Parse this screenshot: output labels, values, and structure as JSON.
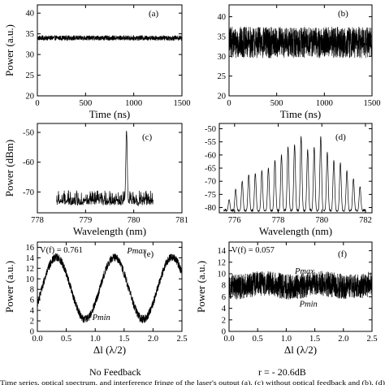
{
  "chart_data": [
    {
      "type": "line",
      "panel_label": "(a)",
      "xlabel": "Time (ns)",
      "ylabel": "Power (a.u.)",
      "xlim": [
        0,
        1500
      ],
      "ylim": [
        20,
        42
      ],
      "xticks": [
        "0",
        "500",
        "1000",
        "1500"
      ],
      "yticks": [
        "20",
        "25",
        "30",
        "35",
        "40"
      ],
      "series": [
        {
          "trace": "noise",
          "mean": 34,
          "amplitude": 0.6
        }
      ]
    },
    {
      "type": "line",
      "panel_label": "(b)",
      "xlabel": "Time (ns)",
      "ylabel": "",
      "xlim": [
        0,
        1500
      ],
      "ylim": [
        20,
        43
      ],
      "xticks": [
        "0",
        "500",
        "1000",
        "1500"
      ],
      "yticks": [
        "20",
        "25",
        "30",
        "35",
        "40"
      ],
      "series": [
        {
          "trace": "noise",
          "mean": 33.5,
          "amplitude": 4
        }
      ]
    },
    {
      "type": "line",
      "panel_label": "(c)",
      "xlabel": "Wavelength (nm)",
      "ylabel": "Power (dBm)",
      "xlim": [
        778,
        781
      ],
      "ylim": [
        -77,
        -47
      ],
      "xticks": [
        "778",
        "779",
        "780",
        "781"
      ],
      "yticks": [
        "-70",
        "-60",
        "-50"
      ],
      "series": [
        {
          "trace": "spectrum",
          "x_start": 778.4,
          "x_end": 780.4,
          "floor": -74.5,
          "floor_spread": 5,
          "peaks": [
            {
              "x": 779.85,
              "y": -49.5
            }
          ]
        }
      ]
    },
    {
      "type": "line",
      "panel_label": "(d)",
      "xlabel": "Wavelength (nm)",
      "ylabel": "",
      "xlim": [
        775.3,
        782.3
      ],
      "ylim": [
        -82,
        -48
      ],
      "xticks": [
        "776",
        "778",
        "780",
        "782"
      ],
      "yticks": [
        "-80",
        "-75",
        "-70",
        "-65",
        "-60",
        "-55",
        "-50"
      ],
      "series": [
        {
          "trace": "spectrum",
          "x_start": 775.5,
          "x_end": 782.0,
          "floor": -81.5,
          "floor_spread": 1,
          "peaks": [
            {
              "x": 775.75,
              "y": -77
            },
            {
              "x": 776.05,
              "y": -73
            },
            {
              "x": 776.35,
              "y": -70
            },
            {
              "x": 776.65,
              "y": -67.5
            },
            {
              "x": 776.95,
              "y": -67
            },
            {
              "x": 777.25,
              "y": -66
            },
            {
              "x": 777.55,
              "y": -65
            },
            {
              "x": 777.85,
              "y": -62
            },
            {
              "x": 778.15,
              "y": -60
            },
            {
              "x": 778.45,
              "y": -57
            },
            {
              "x": 778.75,
              "y": -56
            },
            {
              "x": 779.05,
              "y": -53
            },
            {
              "x": 779.35,
              "y": -58
            },
            {
              "x": 779.65,
              "y": -57
            },
            {
              "x": 779.95,
              "y": -53
            },
            {
              "x": 780.25,
              "y": -59
            },
            {
              "x": 780.55,
              "y": -62
            },
            {
              "x": 780.85,
              "y": -63
            },
            {
              "x": 781.15,
              "y": -66
            },
            {
              "x": 781.45,
              "y": -69
            },
            {
              "x": 781.75,
              "y": -72
            }
          ]
        }
      ]
    },
    {
      "type": "line",
      "panel_label": "(e)",
      "xlabel": "Δl (λ/2)",
      "ylabel": "Power (a.u.)",
      "xlim": [
        0,
        2.5
      ],
      "ylim": [
        0,
        17
      ],
      "xticks": [
        "0.0",
        "0.5",
        "1.0",
        "1.5",
        "2.0",
        "2.5"
      ],
      "yticks": [
        "0",
        "2",
        "4",
        "6",
        "8",
        "10",
        "12",
        "14",
        "16"
      ],
      "series": [
        {
          "trace": "fringe",
          "mean": 8.2,
          "amplitude": 5.9,
          "period": 1.0,
          "phase_max_at": 0.33,
          "noise": 0.8
        }
      ],
      "annotations": {
        "visibility": "V(f) = 0.761",
        "pmax": "Pmax",
        "pmin": "Pmin"
      }
    },
    {
      "type": "line",
      "panel_label": "(f)",
      "xlabel": "Δl (λ/2)",
      "ylabel": "Power (a.u.)",
      "xlim": [
        0,
        2.5
      ],
      "ylim": [
        0,
        15.5
      ],
      "xticks": [
        "0.0",
        "0.5",
        "1.0",
        "1.5",
        "2.0",
        "2.5"
      ],
      "yticks": [
        "0",
        "2",
        "4",
        "6",
        "8",
        "10",
        "12",
        "14"
      ],
      "series": [
        {
          "trace": "fringe",
          "mean": 8.0,
          "amplitude": 0.3,
          "period": 1.0,
          "phase_max_at": 0.6,
          "noise": 2.2
        }
      ],
      "annotations": {
        "visibility": "V(f) = 0.057",
        "pmax": "Pmax",
        "pmin": "Pmin"
      }
    }
  ],
  "bottom_labels": {
    "left": "No Feedback",
    "right": "r = - 20.6dB"
  },
  "caption": "Time series, optical spectrum, and interference fringe of the laser's output (a), (c) without optical feedback and (b), (d)"
}
